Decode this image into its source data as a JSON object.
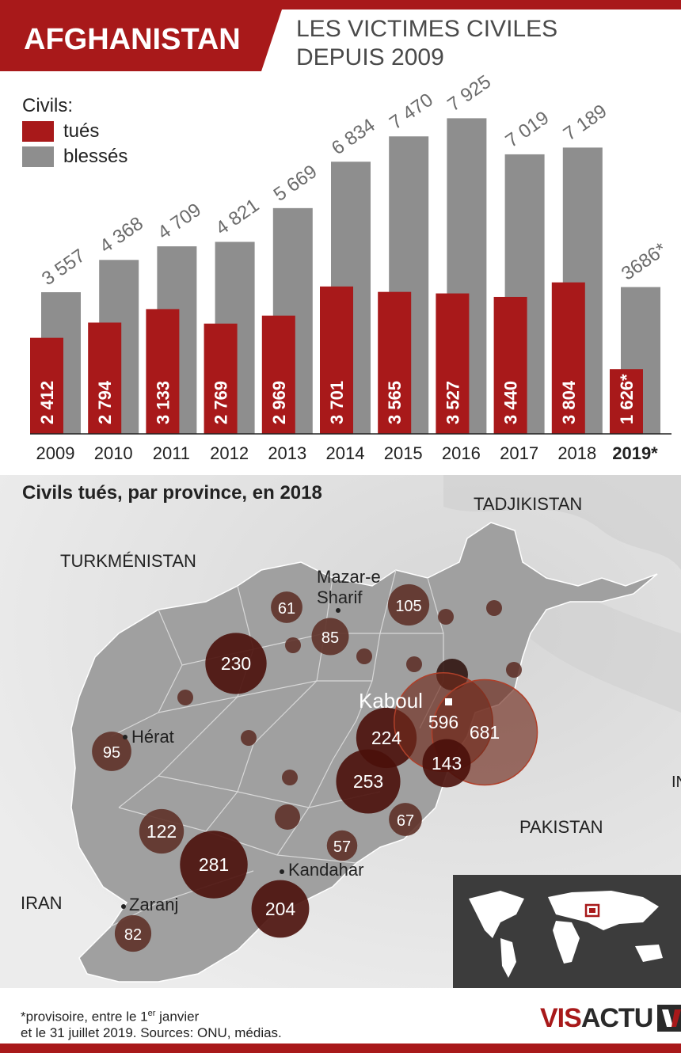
{
  "header": {
    "country": "AFGHANISTAN",
    "title_line1": "LES VICTIMES CIVILES",
    "title_line2": "DEPUIS 2009"
  },
  "legend": {
    "title": "Civils:",
    "killed_label": "tués",
    "injured_label": "blessés"
  },
  "colors": {
    "killed": "#a8191a",
    "injured": "#8e8e8e",
    "map_bg": "#e4e4e4",
    "afghanistan": "#9a9a9a",
    "bubble": "#5a2a22"
  },
  "chart_data": {
    "type": "bar",
    "categories": [
      "2009",
      "2010",
      "2011",
      "2012",
      "2013",
      "2014",
      "2015",
      "2016",
      "2017",
      "2018",
      "2019*"
    ],
    "series": [
      {
        "name": "blessés",
        "values": [
          3557,
          4368,
          4709,
          4821,
          5669,
          6834,
          7470,
          7925,
          7019,
          7189,
          3686
        ],
        "labels": [
          "3 557",
          "4 368",
          "4 709",
          "4 821",
          "5 669",
          "6 834",
          "7 470",
          "7 925",
          "7 019",
          "7 189",
          "3686*"
        ]
      },
      {
        "name": "tués",
        "values": [
          2412,
          2794,
          3133,
          2769,
          2969,
          3701,
          3565,
          3527,
          3440,
          3804,
          1626
        ],
        "labels": [
          "2 412",
          "2 794",
          "3 133",
          "2 769",
          "2 969",
          "3 701",
          "3 565",
          "3 527",
          "3 440",
          "3 804",
          "1 626*"
        ]
      }
    ],
    "grid": false,
    "legend_position": "top-left"
  },
  "map": {
    "title": "Civils tués, par province, en 2018",
    "countries": {
      "tajikistan": "TADJIKISTAN",
      "turkmenistan": "TURKMÉNISTAN",
      "pakistan": "PAKISTAN",
      "iran": "IRAN",
      "india_partial": "IN"
    },
    "cities": {
      "mazar": "Mazar-e",
      "mazar2": "Sharif",
      "kabul": "Kaboul",
      "herat": "Hérat",
      "kandahar": "Kandahar",
      "zaranj": "Zaranj"
    },
    "province_values": [
      "61",
      "85",
      "105",
      "230",
      "95",
      "224",
      "596",
      "681",
      "143",
      "253",
      "67",
      "122",
      "57",
      "281",
      "204",
      "82"
    ]
  },
  "footer": {
    "line1_a": "*provisoire, entre le 1",
    "line1_sup": "er",
    "line1_b": " janvier",
    "line2": "et le 31 juillet 2019. Sources: ONU, médias."
  },
  "logo": {
    "vis": "VIS",
    "actu": "ACTU"
  }
}
